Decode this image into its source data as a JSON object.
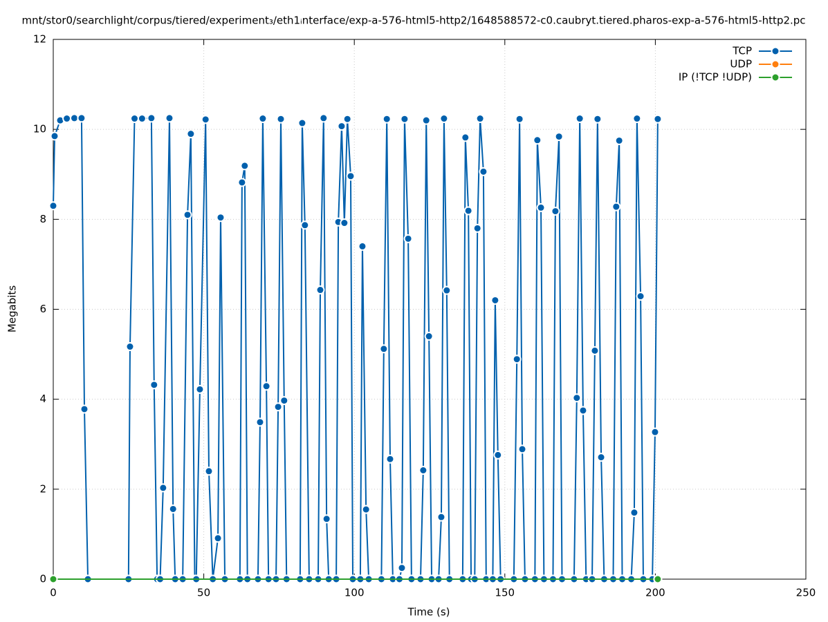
{
  "chart_data": {
    "type": "line",
    "title": "mnt/stor0/searchlight/corpus/tiered/experiment₃/eth1ᵢnterface/exp-a-576-html5-http2/1648588572-c0.caubryt.tiered.pharos-exp-a-576-html5-http2.pc",
    "xlabel": "Time (s)",
    "ylabel": "Megabits",
    "xlim": [
      0,
      250
    ],
    "xticks": [
      0,
      50,
      100,
      150,
      200,
      250
    ],
    "ylim": [
      0,
      12
    ],
    "yticks": [
      0,
      2,
      4,
      6,
      8,
      10,
      12
    ],
    "grid": true,
    "legend": "upper right",
    "series": [
      {
        "name": "TCP",
        "color": "#0060ad",
        "x": [
          0,
          0.46,
          2.3,
          4.5,
          7,
          9.4,
          10.34,
          11.5,
          25,
          25.5,
          27,
          29.5,
          32.6,
          33.5,
          34.5,
          35.5,
          36.5,
          38.6,
          39.8,
          40.5,
          43,
          44.6,
          45.7,
          47,
          47.5,
          48.7,
          50.6,
          51.7,
          53,
          54.7,
          55.6,
          57,
          62,
          62.7,
          63.6,
          64.5,
          68,
          68.7,
          69.6,
          70.8,
          71.5,
          74,
          74.7,
          75.6,
          76.7,
          77.5,
          82,
          82.7,
          83.6,
          85,
          88,
          88.7,
          89.8,
          90.8,
          91.5,
          94,
          94.7,
          95.8,
          96.7,
          97.7,
          98.8,
          99.5,
          102,
          102.7,
          103.9,
          104.8,
          109,
          109.8,
          110.8,
          111.9,
          112.8,
          115,
          115.8,
          116.7,
          117.9,
          119,
          122,
          122.9,
          123.9,
          124.8,
          125.7,
          128,
          128.9,
          129.8,
          130.7,
          131.6,
          136,
          136.9,
          137.9,
          138.8,
          140,
          140.9,
          141.8,
          142.9,
          143.8,
          146,
          146.8,
          147.7,
          148.6,
          153,
          154,
          154.9,
          155.8,
          156.7,
          160,
          160.8,
          162,
          163,
          166,
          166.8,
          168,
          169,
          173,
          173.9,
          174.9,
          176,
          177,
          179,
          179.9,
          180.8,
          182,
          183,
          186,
          187,
          188,
          189,
          192,
          193,
          193.9,
          195.1,
          196,
          199,
          199.9,
          200.8
        ],
        "values": [
          8.3,
          9.85,
          10.2,
          10.24,
          10.25,
          10.25,
          3.78,
          0,
          0,
          5.17,
          10.24,
          10.24,
          10.25,
          4.32,
          0,
          0,
          2.03,
          10.25,
          1.56,
          0,
          0,
          8.1,
          9.9,
          0,
          0,
          4.22,
          10.22,
          2.4,
          0,
          0.91,
          8.04,
          0,
          0,
          8.82,
          9.19,
          0,
          0,
          3.49,
          10.24,
          4.29,
          0,
          0,
          3.83,
          10.23,
          3.97,
          0,
          0,
          10.14,
          7.87,
          0,
          0,
          6.43,
          10.25,
          1.34,
          0,
          0,
          7.94,
          10.07,
          7.92,
          10.23,
          8.96,
          0,
          0,
          7.4,
          1.55,
          0,
          0,
          5.12,
          10.23,
          2.67,
          0,
          0,
          0.25,
          10.23,
          7.57,
          0,
          0,
          2.42,
          10.2,
          5.4,
          0,
          0,
          1.38,
          10.24,
          6.42,
          0,
          0,
          9.82,
          8.19,
          0,
          0,
          7.8,
          10.24,
          9.06,
          0,
          0,
          6.2,
          2.76,
          0,
          0,
          4.89,
          10.23,
          2.89,
          0,
          0,
          9.76,
          8.26,
          0,
          0,
          8.18,
          9.84,
          0,
          0,
          4.03,
          10.24,
          3.75,
          0,
          0,
          5.08,
          10.23,
          2.71,
          0,
          0,
          8.28,
          9.75,
          0,
          0,
          1.48,
          10.24,
          6.29,
          0,
          0,
          3.27,
          10.23
        ]
      },
      {
        "name": "UDP",
        "color": "#ff7f0e",
        "x": [
          200.8
        ],
        "values": [
          0
        ]
      },
      {
        "name": "IP (!TCP  !UDP)",
        "color": "#2ca02c",
        "x": [
          0,
          200.8
        ],
        "values": [
          0,
          0
        ]
      }
    ]
  }
}
